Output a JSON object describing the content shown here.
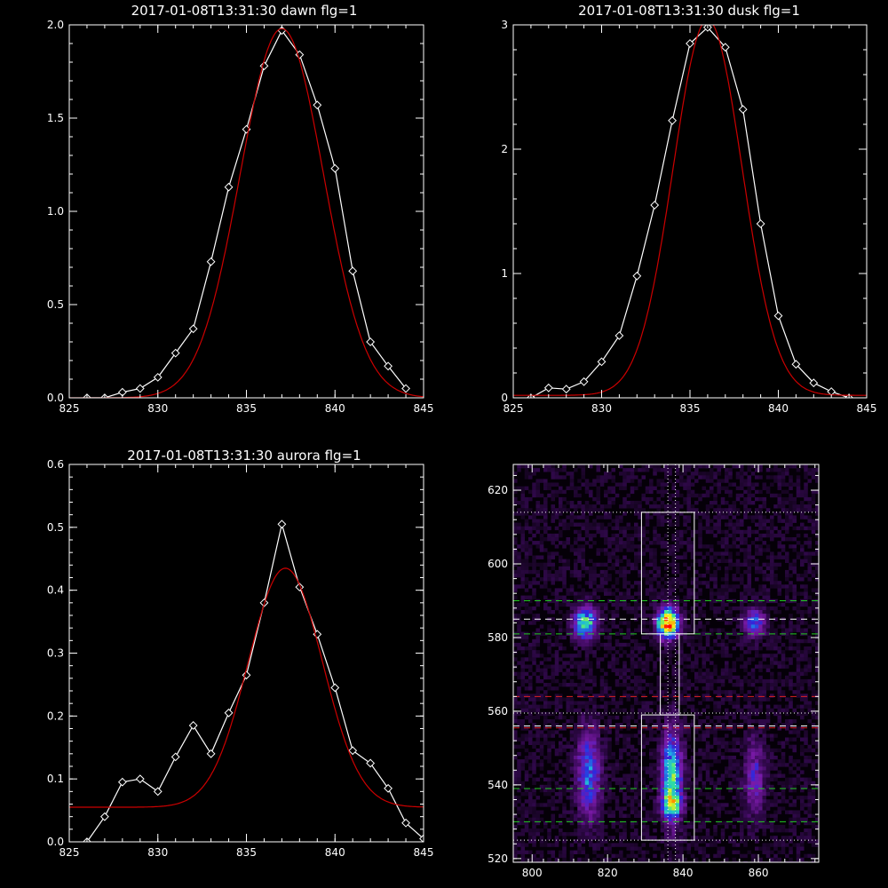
{
  "colors": {
    "background": "#000000",
    "axes": "#ffffff",
    "observed": "#ffffff",
    "fit": "#cc0000",
    "green_line": "#22cc22",
    "red_line": "#dd2222",
    "white_line": "#ffffff"
  },
  "chart_data": [
    {
      "type": "line",
      "title": "2017-01-08T13:31:30 dawn flg=1",
      "xlim": [
        825,
        845
      ],
      "ylim": [
        0,
        2.0
      ],
      "xticks": [
        "825",
        "830",
        "835",
        "840",
        "845"
      ],
      "yticks": [
        "0.0",
        "0.5",
        "1.0",
        "1.5",
        "2.0"
      ],
      "xtick_values": [
        825,
        830,
        835,
        840,
        845
      ],
      "ytick_values": [
        0,
        0.5,
        1.0,
        1.5,
        2.0
      ],
      "series": [
        {
          "style": "white-diamonds",
          "x": [
            826,
            827,
            828,
            829,
            830,
            831,
            832,
            833,
            834,
            835,
            836,
            837,
            838,
            839,
            840,
            841,
            842,
            843,
            844
          ],
          "y": [
            0.0,
            0.0,
            0.03,
            0.05,
            0.11,
            0.24,
            0.37,
            0.73,
            1.13,
            1.44,
            1.78,
            1.97,
            1.84,
            1.57,
            1.23,
            0.68,
            0.3,
            0.17,
            0.05
          ]
        },
        {
          "style": "red-fit",
          "gaussian": {
            "amplitude": 1.98,
            "center": 837.0,
            "sigma": 2.35,
            "offset": 0.0
          }
        }
      ]
    },
    {
      "type": "line",
      "title": "2017-01-08T13:31:30 dusk flg=1",
      "xlim": [
        825,
        845
      ],
      "ylim": [
        0,
        3
      ],
      "xticks": [
        "825",
        "830",
        "835",
        "840",
        "845"
      ],
      "yticks": [
        "0",
        "1",
        "2",
        "3"
      ],
      "xtick_values": [
        825,
        830,
        835,
        840,
        845
      ],
      "ytick_values": [
        0,
        1,
        2,
        3
      ],
      "series": [
        {
          "style": "white-diamonds",
          "x": [
            826,
            827,
            828,
            829,
            830,
            831,
            832,
            833,
            834,
            835,
            836,
            837,
            838,
            839,
            840,
            841,
            842,
            843,
            844
          ],
          "y": [
            0.0,
            0.08,
            0.07,
            0.13,
            0.29,
            0.5,
            0.98,
            1.55,
            2.23,
            2.85,
            2.98,
            2.82,
            2.32,
            1.4,
            0.66,
            0.27,
            0.12,
            0.05,
            0.0
          ]
        },
        {
          "style": "red-fit",
          "gaussian": {
            "amplitude": 3.02,
            "center": 836.0,
            "sigma": 1.95,
            "offset": 0.02
          }
        }
      ]
    },
    {
      "type": "line",
      "title": "2017-01-08T13:31:30 aurora flg=1",
      "xlim": [
        825,
        845
      ],
      "ylim": [
        0,
        0.6
      ],
      "xticks": [
        "825",
        "830",
        "835",
        "840",
        "845"
      ],
      "yticks": [
        "0.0",
        "0.1",
        "0.2",
        "0.3",
        "0.4",
        "0.5",
        "0.6"
      ],
      "xtick_values": [
        825,
        830,
        835,
        840,
        845
      ],
      "ytick_values": [
        0,
        0.1,
        0.2,
        0.3,
        0.4,
        0.5,
        0.6
      ],
      "series": [
        {
          "style": "white-diamonds",
          "x": [
            826,
            827,
            828,
            829,
            830,
            831,
            832,
            833,
            834,
            835,
            836,
            837,
            838,
            839,
            840,
            841,
            842,
            843,
            844,
            845
          ],
          "y": [
            0.0,
            0.04,
            0.095,
            0.1,
            0.08,
            0.135,
            0.185,
            0.14,
            0.205,
            0.265,
            0.38,
            0.505,
            0.405,
            0.33,
            0.245,
            0.145,
            0.125,
            0.085,
            0.03,
            0.005
          ]
        },
        {
          "style": "red-fit",
          "gaussian": {
            "amplitude": 0.38,
            "center": 837.2,
            "sigma": 2.1,
            "offset": 0.055
          }
        }
      ]
    },
    {
      "type": "heatmap",
      "title": "",
      "xlim": [
        795,
        876
      ],
      "ylim": [
        519,
        627
      ],
      "xticks": [
        "800",
        "820",
        "840",
        "860"
      ],
      "yticks": [
        "520",
        "540",
        "560",
        "580",
        "600",
        "620"
      ],
      "xtick_values": [
        800,
        820,
        840,
        860
      ],
      "ytick_values": [
        520,
        540,
        560,
        580,
        600,
        620
      ],
      "colormap": [
        "#000000",
        "#3a0a5a",
        "#7a1aa8",
        "#2a2ae0",
        "#1fa8e8",
        "#30e0a0",
        "#a0f040",
        "#f0f020",
        "#ff8a00",
        "#ff0000"
      ],
      "blobs": [
        {
          "x": 814,
          "y": 584,
          "sx": 2.0,
          "sy": 2.8,
          "amp": 0.55
        },
        {
          "x": 836,
          "y": 584,
          "sx": 1.8,
          "sy": 2.6,
          "amp": 1.0
        },
        {
          "x": 859,
          "y": 584,
          "sx": 1.9,
          "sy": 2.5,
          "amp": 0.32
        },
        {
          "x": 815,
          "y": 543,
          "sx": 2.0,
          "sy": 8.0,
          "amp": 0.36
        },
        {
          "x": 837,
          "y": 542,
          "sx": 1.8,
          "sy": 8.0,
          "amp": 0.52
        },
        {
          "x": 837,
          "y": 535,
          "sx": 1.6,
          "sy": 2.2,
          "amp": 0.45
        },
        {
          "x": 859,
          "y": 542,
          "sx": 1.9,
          "sy": 7.0,
          "amp": 0.22
        }
      ],
      "boxes": [
        {
          "x0": 829,
          "x1": 843,
          "y0": 581,
          "y1": 614
        },
        {
          "x0": 829,
          "x1": 843,
          "y0": 525,
          "y1": 559
        },
        {
          "x0": 834,
          "x1": 839,
          "y0": 559,
          "y1": 581
        }
      ],
      "hlines": [
        {
          "y": 590,
          "style": "green-dash"
        },
        {
          "y": 585,
          "style": "white-dash"
        },
        {
          "y": 581,
          "style": "green-dash"
        },
        {
          "y": 564,
          "style": "red-dash"
        },
        {
          "y": 556,
          "style": "white-dash"
        },
        {
          "y": 555.5,
          "style": "red-dash"
        },
        {
          "y": 539,
          "style": "green-dash"
        },
        {
          "y": 530,
          "style": "green-dash"
        },
        {
          "y": 614,
          "style": "white-dot"
        },
        {
          "y": 559.5,
          "style": "white-dot"
        },
        {
          "y": 525,
          "style": "white-dot"
        }
      ],
      "vlines": [
        {
          "x": 836,
          "style": "white-dot"
        },
        {
          "x": 838,
          "style": "white-dot"
        }
      ]
    }
  ]
}
